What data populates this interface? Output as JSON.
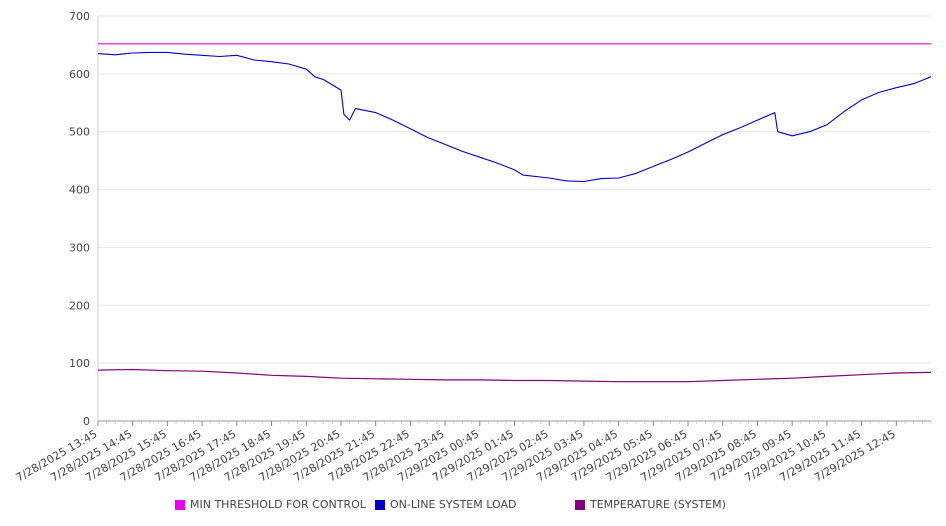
{
  "chart_data": {
    "type": "line",
    "ylim": [
      0,
      700
    ],
    "yticks": [
      0,
      100,
      200,
      300,
      400,
      500,
      600,
      700
    ],
    "grid": true,
    "legend_position": "bottom",
    "x_labels": [
      "7/28/2025 13:45",
      "7/28/2025 14:45",
      "7/28/2025 15:45",
      "7/28/2025 16:45",
      "7/28/2025 17:45",
      "7/28/2025 18:45",
      "7/28/2025 19:45",
      "7/28/2025 20:45",
      "7/28/2025 21:45",
      "7/28/2025 22:45",
      "7/28/2025 23:45",
      "7/29/2025 00:45",
      "7/29/2025 01:45",
      "7/29/2025 02:45",
      "7/29/2025 03:45",
      "7/29/2025 04:45",
      "7/29/2025 05:45",
      "7/29/2025 06:45",
      "7/29/2025 07:45",
      "7/29/2025 08:45",
      "7/29/2025 09:45",
      "7/29/2025 10:45",
      "7/29/2025 11:45",
      "7/29/2025 12:45"
    ],
    "x_range": [
      "7/28/2025 13:45",
      "7/29/2025 13:45"
    ],
    "series": [
      {
        "name": "MIN THRESHOLD FOR CONTROL",
        "color": "#ee00ee",
        "points": [
          [
            "7/28/2025 13:45",
            652
          ],
          [
            "7/29/2025 13:45",
            652
          ]
        ]
      },
      {
        "name": "ON-LINE SYSTEM LOAD",
        "color": "#0000cc",
        "points": [
          [
            "7/28/2025 13:45",
            635
          ],
          [
            "7/28/2025 14:15",
            633
          ],
          [
            "7/28/2025 14:45",
            636
          ],
          [
            "7/28/2025 15:15",
            637
          ],
          [
            "7/28/2025 15:45",
            637
          ],
          [
            "7/28/2025 16:15",
            634
          ],
          [
            "7/28/2025 16:45",
            632
          ],
          [
            "7/28/2025 17:15",
            630
          ],
          [
            "7/28/2025 17:45",
            632
          ],
          [
            "7/28/2025 18:15",
            624
          ],
          [
            "7/28/2025 18:45",
            621
          ],
          [
            "7/28/2025 19:15",
            617
          ],
          [
            "7/28/2025 19:45",
            608
          ],
          [
            "7/28/2025 20:00",
            595
          ],
          [
            "7/28/2025 20:15",
            590
          ],
          [
            "7/28/2025 20:45",
            572
          ],
          [
            "7/28/2025 20:50",
            530
          ],
          [
            "7/28/2025 21:00",
            520
          ],
          [
            "7/28/2025 21:10",
            540
          ],
          [
            "7/28/2025 21:45",
            533
          ],
          [
            "7/28/2025 22:15",
            520
          ],
          [
            "7/28/2025 22:45",
            505
          ],
          [
            "7/28/2025 23:15",
            490
          ],
          [
            "7/28/2025 23:45",
            478
          ],
          [
            "7/29/2025 00:15",
            466
          ],
          [
            "7/29/2025 00:45",
            456
          ],
          [
            "7/29/2025 01:15",
            446
          ],
          [
            "7/29/2025 01:45",
            434
          ],
          [
            "7/29/2025 02:00",
            425
          ],
          [
            "7/29/2025 02:45",
            420
          ],
          [
            "7/29/2025 03:15",
            415
          ],
          [
            "7/29/2025 03:45",
            414
          ],
          [
            "7/29/2025 04:15",
            419
          ],
          [
            "7/29/2025 04:45",
            420
          ],
          [
            "7/29/2025 05:15",
            428
          ],
          [
            "7/29/2025 05:45",
            440
          ],
          [
            "7/29/2025 06:15",
            452
          ],
          [
            "7/29/2025 06:45",
            465
          ],
          [
            "7/29/2025 07:15",
            480
          ],
          [
            "7/29/2025 07:45",
            495
          ],
          [
            "7/29/2025 08:15",
            507
          ],
          [
            "7/29/2025 08:45",
            520
          ],
          [
            "7/29/2025 09:15",
            533
          ],
          [
            "7/29/2025 09:20",
            500
          ],
          [
            "7/29/2025 09:45",
            493
          ],
          [
            "7/29/2025 10:15",
            500
          ],
          [
            "7/29/2025 10:45",
            512
          ],
          [
            "7/29/2025 11:15",
            535
          ],
          [
            "7/29/2025 11:45",
            555
          ],
          [
            "7/29/2025 12:15",
            568
          ],
          [
            "7/29/2025 12:45",
            576
          ],
          [
            "7/29/2025 13:15",
            583
          ],
          [
            "7/29/2025 13:45",
            595
          ]
        ]
      },
      {
        "name": "TEMPERATURE (SYSTEM)",
        "color": "#800080",
        "points": [
          [
            "7/28/2025 13:45",
            88
          ],
          [
            "7/28/2025 14:45",
            89
          ],
          [
            "7/28/2025 15:45",
            87
          ],
          [
            "7/28/2025 16:45",
            86
          ],
          [
            "7/28/2025 17:45",
            83
          ],
          [
            "7/28/2025 18:45",
            79
          ],
          [
            "7/28/2025 19:45",
            77
          ],
          [
            "7/28/2025 20:45",
            74
          ],
          [
            "7/28/2025 21:45",
            73
          ],
          [
            "7/28/2025 22:45",
            72
          ],
          [
            "7/28/2025 23:45",
            71
          ],
          [
            "7/29/2025 00:45",
            71
          ],
          [
            "7/29/2025 01:45",
            70
          ],
          [
            "7/29/2025 02:45",
            70
          ],
          [
            "7/29/2025 03:45",
            69
          ],
          [
            "7/29/2025 04:45",
            68
          ],
          [
            "7/29/2025 05:45",
            68
          ],
          [
            "7/29/2025 06:45",
            68
          ],
          [
            "7/29/2025 07:45",
            70
          ],
          [
            "7/29/2025 08:45",
            72
          ],
          [
            "7/29/2025 09:45",
            74
          ],
          [
            "7/29/2025 10:45",
            77
          ],
          [
            "7/29/2025 11:45",
            80
          ],
          [
            "7/29/2025 12:45",
            83
          ],
          [
            "7/29/2025 13:45",
            84
          ]
        ]
      }
    ]
  }
}
